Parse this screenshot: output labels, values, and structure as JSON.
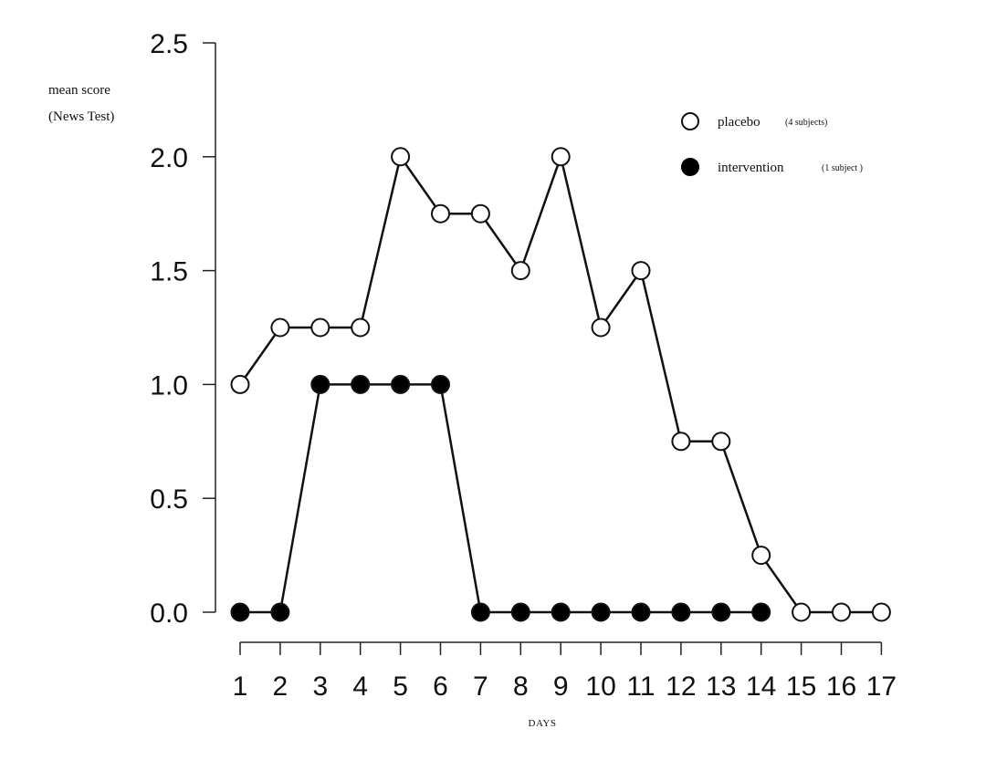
{
  "chart_data": {
    "type": "line",
    "title": "",
    "ylabel_line1": "mean score",
    "ylabel_line2": "(News Test)",
    "xlabel": "DAYS",
    "x": [
      1,
      2,
      3,
      4,
      5,
      6,
      7,
      8,
      9,
      10,
      11,
      12,
      13,
      14,
      15,
      16,
      17
    ],
    "ylim": [
      0,
      2.5
    ],
    "yticks": [
      "0.0",
      "0.5",
      "1.0",
      "1.5",
      "2.0",
      "2.5"
    ],
    "grid": false,
    "legend_position": "top-right",
    "series": [
      {
        "name": "placebo",
        "note": "(4 subjects)",
        "marker": "open-circle",
        "x": [
          1,
          2,
          3,
          4,
          5,
          6,
          7,
          8,
          9,
          10,
          11,
          12,
          13,
          14,
          15,
          16,
          17
        ],
        "values": [
          1.0,
          1.25,
          1.25,
          1.25,
          2.0,
          1.75,
          1.75,
          1.5,
          2.0,
          1.25,
          1.5,
          0.75,
          0.75,
          0.25,
          0.0,
          0.0,
          0.0
        ]
      },
      {
        "name": "intervention",
        "note": "(1 subject )",
        "marker": "filled-circle",
        "x": [
          1,
          2,
          3,
          4,
          5,
          6,
          7,
          8,
          9,
          10,
          11,
          12,
          13,
          14
        ],
        "values": [
          0.0,
          0.0,
          1.0,
          1.0,
          1.0,
          1.0,
          0.0,
          0.0,
          0.0,
          0.0,
          0.0,
          0.0,
          0.0,
          0.0
        ]
      }
    ],
    "colors": {
      "line": "#111111",
      "open_marker_fill": "#ffffff",
      "filled_marker_fill": "#000000"
    }
  }
}
